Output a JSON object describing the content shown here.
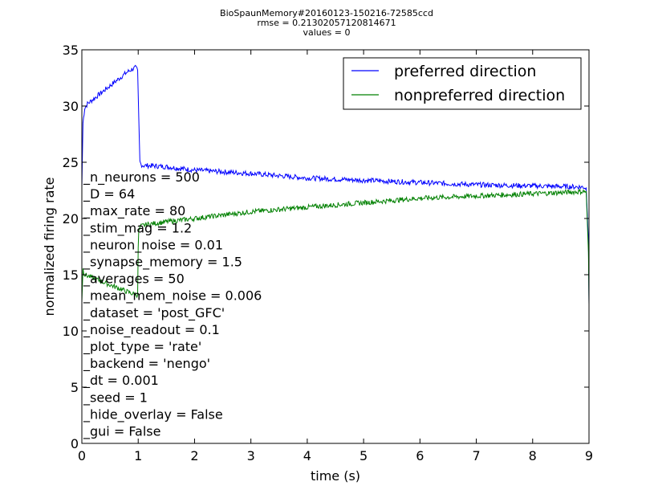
{
  "chart_data": {
    "type": "line",
    "title_lines": [
      "BioSpaunMemory#20160123-150216-72585ccd",
      "rmse = 0.21302057120814671",
      "values = 0"
    ],
    "xlabel": "time (s)",
    "ylabel": "normalized firing rate",
    "xlim": [
      0,
      9
    ],
    "ylim": [
      0,
      35
    ],
    "xticks": [
      0,
      1,
      2,
      3,
      4,
      5,
      6,
      7,
      8,
      9
    ],
    "yticks": [
      0,
      5,
      10,
      15,
      20,
      25,
      30,
      35
    ],
    "legend_position": "top-right",
    "grid": false,
    "series": [
      {
        "name": "preferred direction",
        "color": "#0000ff",
        "x": [
          0,
          0.02,
          0.05,
          0.1,
          0.2,
          0.3,
          0.4,
          0.5,
          0.6,
          0.7,
          0.8,
          0.9,
          0.95,
          0.99,
          1.01,
          1.03,
          1.05,
          1.1,
          1.2,
          1.5,
          2,
          3,
          4,
          5,
          6,
          7,
          8,
          8.9,
          8.95,
          8.99,
          9
        ],
        "y": [
          22.8,
          28.5,
          29.8,
          30.2,
          30.6,
          31.0,
          31.4,
          31.8,
          32.2,
          32.6,
          33.0,
          33.3,
          33.4,
          33.2,
          29.0,
          25.0,
          24.8,
          24.7,
          24.7,
          24.6,
          24.3,
          24.0,
          23.6,
          23.4,
          23.2,
          23.0,
          22.9,
          22.8,
          22.7,
          18.0,
          12.4
        ]
      },
      {
        "name": "nonpreferred direction",
        "color": "#008000",
        "x": [
          0,
          0.02,
          0.05,
          0.1,
          0.2,
          0.3,
          0.4,
          0.5,
          0.6,
          0.7,
          0.8,
          0.9,
          0.99,
          1.0,
          1.01,
          1.03,
          1.05,
          1.1,
          1.2,
          1.5,
          2,
          2.5,
          3,
          3.5,
          4,
          4.5,
          5,
          5.5,
          6,
          6.5,
          7,
          7.5,
          8,
          8.5,
          8.9,
          8.95,
          8.99,
          9
        ],
        "y": [
          12.6,
          15.5,
          15.0,
          14.9,
          14.7,
          14.5,
          14.3,
          14.1,
          13.9,
          13.7,
          13.5,
          13.3,
          13.2,
          17.5,
          18.8,
          19.2,
          19.3,
          19.4,
          19.5,
          19.7,
          20.0,
          20.3,
          20.6,
          20.8,
          21.0,
          21.2,
          21.4,
          21.6,
          21.8,
          21.9,
          22.0,
          22.1,
          22.2,
          22.3,
          22.4,
          22.4,
          17.0,
          12.4
        ]
      }
    ],
    "overlay_lines": [
      "_n_neurons = 500",
      "_D = 64",
      "_max_rate = 80",
      "_stim_mag = 1.2",
      "_neuron_noise = 0.01",
      "_synapse_memory = 1.5",
      "_averages = 50",
      "_mean_mem_noise = 0.006",
      "_dataset = 'post_GFC'",
      "_noise_readout = 0.1",
      "_plot_type = 'rate'",
      "_backend = 'nengo'",
      "_dt = 0.001",
      "_seed = 1",
      "_hide_overlay = False",
      "_gui = False"
    ]
  }
}
